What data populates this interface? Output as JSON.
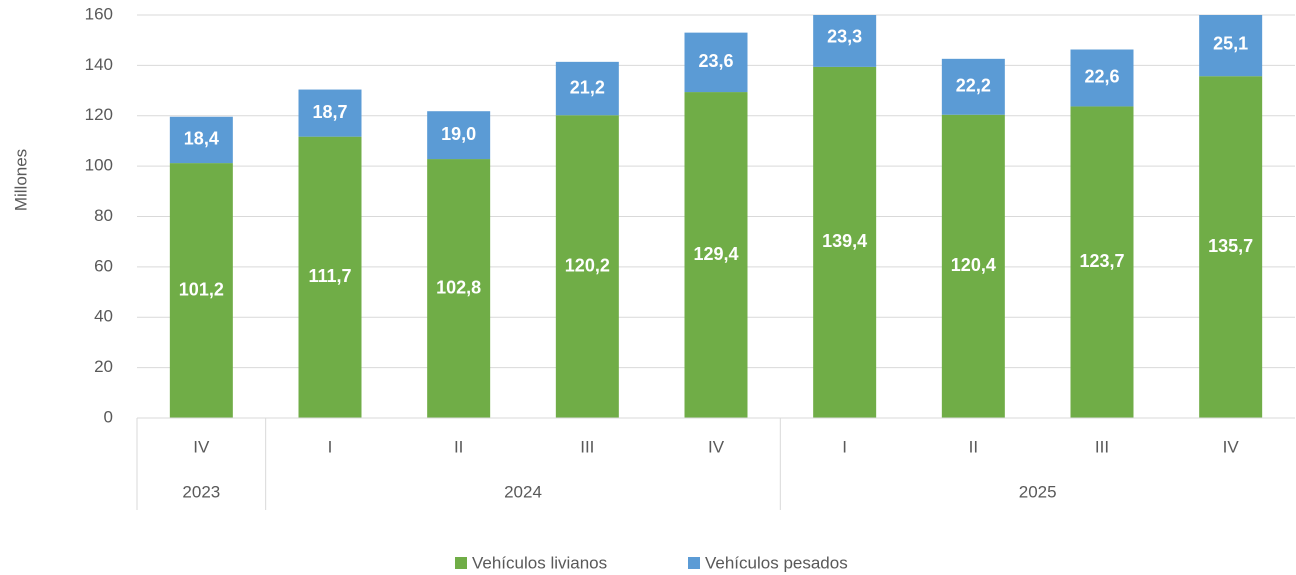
{
  "chart_data": {
    "type": "stacked_bar",
    "y_label": "Millones",
    "categories": [
      "IV",
      "I",
      "II",
      "III",
      "IV",
      "I",
      "II",
      "III",
      "IV"
    ],
    "groups": [
      {
        "label": "2023",
        "size": 1
      },
      {
        "label": "2024",
        "size": 4
      },
      {
        "label": "2025",
        "size": 4
      }
    ],
    "series": [
      {
        "name": "Vehículos livianos",
        "color": "#70ad47",
        "values": [
          101.2,
          111.7,
          102.8,
          120.2,
          129.4,
          139.4,
          120.4,
          123.7,
          135.7
        ],
        "value_labels": [
          "101,2",
          "111,7",
          "102,8",
          "120,2",
          "129,4",
          "139,4",
          "120,4",
          "123,7",
          "135,7"
        ]
      },
      {
        "name": "Vehículos pesados",
        "color": "#5b9bd5",
        "values": [
          18.4,
          18.7,
          19.0,
          21.2,
          23.6,
          23.3,
          22.2,
          22.6,
          25.1
        ],
        "value_labels": [
          "18,4",
          "18,7",
          "19,0",
          "21,2",
          "23,6",
          "23,3",
          "22,2",
          "22,6",
          "25,1"
        ]
      }
    ],
    "ylim": [
      0,
      160
    ],
    "yticks": [
      0,
      20,
      40,
      60,
      80,
      100,
      120,
      140,
      160
    ],
    "grid": true,
    "legend": "bottom"
  }
}
